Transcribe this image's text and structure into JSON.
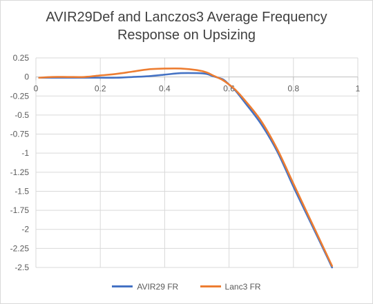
{
  "chart_data": {
    "type": "line",
    "title_lines": [
      "AVIR29Def and Lanczos3 Average Frequency",
      "Response on Upsizing"
    ],
    "xlabel": "",
    "ylabel": "",
    "xlim": [
      0,
      1
    ],
    "ylim": [
      -2.5,
      0.25
    ],
    "x_ticks": [
      "0",
      "0.2",
      "0.4",
      "0.6",
      "0.8",
      "1"
    ],
    "x_tick_values": [
      0,
      0.2,
      0.4,
      0.6,
      0.8,
      1
    ],
    "y_ticks": [
      "0.25",
      "0",
      "-0.25",
      "-0.5",
      "-0.75",
      "-1",
      "-1.25",
      "-1.5",
      "-1.75",
      "-2",
      "-2.25",
      "-2.5"
    ],
    "y_tick_values": [
      0.25,
      0,
      -0.25,
      -0.5,
      -0.75,
      -1,
      -1.25,
      -1.5,
      -1.75,
      -2,
      -2.25,
      -2.5
    ],
    "grid": true,
    "legend_position": "bottom",
    "series": [
      {
        "name": "AVIR29  FR",
        "color": "#4472c4",
        "x": [
          0.01,
          0.05,
          0.1,
          0.15,
          0.2,
          0.25,
          0.3,
          0.35,
          0.4,
          0.45,
          0.5,
          0.53,
          0.55,
          0.58,
          0.6,
          0.62,
          0.65,
          0.7,
          0.75,
          0.8,
          0.85,
          0.9,
          0.92
        ],
        "y": [
          -0.01,
          -0.01,
          -0.01,
          -0.01,
          -0.01,
          -0.01,
          0.0,
          0.01,
          0.03,
          0.05,
          0.05,
          0.04,
          0.01,
          -0.03,
          -0.1,
          -0.18,
          -0.34,
          -0.62,
          -0.98,
          -1.44,
          -1.88,
          -2.32,
          -2.5
        ]
      },
      {
        "name": "Lanc3  FR",
        "color": "#ed7d31",
        "x": [
          0.01,
          0.05,
          0.1,
          0.15,
          0.2,
          0.25,
          0.3,
          0.35,
          0.4,
          0.45,
          0.5,
          0.53,
          0.55,
          0.58,
          0.6,
          0.62,
          0.65,
          0.7,
          0.75,
          0.8,
          0.85,
          0.9,
          0.92
        ],
        "y": [
          -0.01,
          0.0,
          0.0,
          0.0,
          0.02,
          0.04,
          0.07,
          0.1,
          0.11,
          0.11,
          0.09,
          0.06,
          0.02,
          -0.04,
          -0.1,
          -0.17,
          -0.31,
          -0.58,
          -0.95,
          -1.4,
          -1.85,
          -2.3,
          -2.48
        ]
      }
    ]
  }
}
